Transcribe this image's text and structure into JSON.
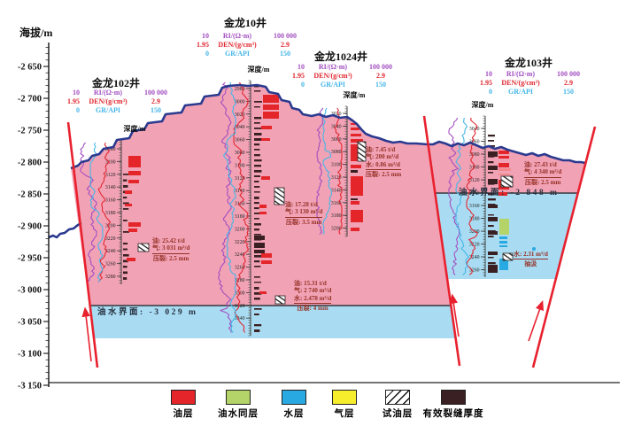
{
  "axis": {
    "label": "海拔/m",
    "ticks": [
      "-2 650",
      "-2 700",
      "-2 750",
      "-2 800",
      "-2 850",
      "-2 900",
      "-2 950",
      "-3 000",
      "-3 050",
      "-3 100",
      "-3 150"
    ]
  },
  "log_header": {
    "rows": [
      {
        "left": "10",
        "name": "RI/(Ω·m)",
        "right": "100 000",
        "key": "ri"
      },
      {
        "left": "1.95",
        "name": "DEN/(g/cm³)",
        "right": "2.9",
        "key": "den"
      },
      {
        "left": "0",
        "name": "GR/API",
        "right": "150",
        "key": "gr"
      }
    ],
    "depth_label": "深度/m"
  },
  "colors": {
    "ri": "#a24fc0",
    "den": "#e02830",
    "gr": "#45b6e8",
    "oil_zone": "#f2a2b5",
    "water_zone": "#a9dcf2",
    "terrain": "#2b3a8f",
    "fault": "#e8212e",
    "oil_layer": "#e42529",
    "oil_water_layer": "#b4d469",
    "water_layer": "#29a9e1",
    "gas_layer": "#f6ee2d",
    "fracture": "#3a2023",
    "light_red": "#f4888f",
    "annotation": "#943126",
    "contact": "#4a4a52"
  },
  "wells": [
    {
      "name": "金龙102井",
      "depth_ticks": [
        "3080",
        "3100",
        "3120",
        "3140",
        "3160",
        "3180",
        "3200",
        "3220",
        "3240",
        "3260",
        "3280"
      ],
      "annotations": [
        {
          "top": [
            "油: 25.42 t/d",
            "气: 3 031 m³/d"
          ],
          "bot": [
            "压裂: 2.5 mm"
          ]
        }
      ]
    },
    {
      "name": "金龙10井",
      "depth_ticks": [
        "2980",
        "3000",
        "3020",
        "3040",
        "3060",
        "3080",
        "3100",
        "3120",
        "3140",
        "3160",
        "3180",
        "3200",
        "3220",
        "3240",
        "3260",
        "3280",
        "3300",
        "3320",
        "3340"
      ],
      "annotations": [
        {
          "top": [
            "油: 17.28 t/d",
            "气: 3 130 m³/d"
          ],
          "bot": [
            "压裂: 3.5 mm"
          ]
        },
        {
          "top": [
            "油: 15.31 t/d",
            "气: 2 740 m³/d",
            "水: 2.478 m³/d"
          ],
          "bot": [
            "压裂: 4 mm"
          ]
        }
      ]
    },
    {
      "name": "金龙1024井",
      "depth_ticks": [
        "3020",
        "3040",
        "3060",
        "3080",
        "3100",
        "3120",
        "3140",
        "3160",
        "3180",
        "3200"
      ],
      "annotations": [
        {
          "top": [
            "油: 7.45 t/d",
            "气: 200 m³/d",
            "水: 0.86 m³/d"
          ],
          "bot": [
            "压裂: 2.5 mm"
          ]
        }
      ]
    },
    {
      "name": "金龙103井",
      "depth_ticks": [
        "3040",
        "3060",
        "3080",
        "3100",
        "3120",
        "3140",
        "3160",
        "3180",
        "3200",
        "3220",
        "3240",
        "3260"
      ],
      "annotations": [
        {
          "top": [
            "油: 27.43 t/d",
            "气: 4 340 m³/d"
          ],
          "bot": [
            "压裂: 2.5 mm"
          ]
        },
        {
          "top": [
            "水: 2.31 m³/d"
          ],
          "bot": [
            "抽汲"
          ]
        }
      ]
    }
  ],
  "interfaces": [
    {
      "label": "油水界面: -3 029 m"
    },
    {
      "label": "油水界面: -2 848 m"
    }
  ],
  "legend": [
    {
      "label": "油层",
      "key": "oil_layer"
    },
    {
      "label": "油水同层",
      "key": "oil_water_layer"
    },
    {
      "label": "水层",
      "key": "water_layer"
    },
    {
      "label": "气层",
      "key": "gas_layer"
    },
    {
      "label": "试油层",
      "key": "hatch"
    },
    {
      "label": "有效裂缝厚度",
      "key": "fracture"
    }
  ]
}
